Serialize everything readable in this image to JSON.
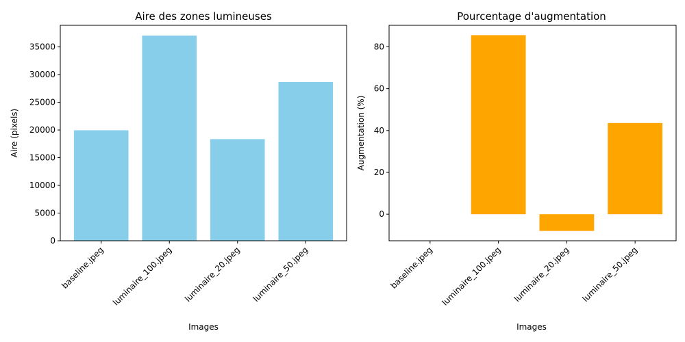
{
  "chart_data": [
    {
      "type": "bar",
      "title": "Aire des zones lumineuses",
      "xlabel": "Images",
      "ylabel": "Aire (pixels)",
      "categories": [
        "baseline.jpeg",
        "luminaire_100.jpeg",
        "luminaire_20.jpeg",
        "luminaire_50.jpeg"
      ],
      "values": [
        19950,
        37050,
        18350,
        28650
      ],
      "ylim": [
        0,
        38900
      ],
      "yticks": [
        0,
        5000,
        10000,
        15000,
        20000,
        25000,
        30000,
        35000
      ],
      "color": "#87ceeb",
      "grid": false
    },
    {
      "type": "bar",
      "title": "Pourcentage d'augmentation",
      "xlabel": "Images",
      "ylabel": "Augmentation (%)",
      "categories": [
        "baseline.jpeg",
        "luminaire_100.jpeg",
        "luminaire_20.jpeg",
        "luminaire_50.jpeg"
      ],
      "values": [
        0,
        85.6,
        -8,
        43.6
      ],
      "ylim": [
        -12.7,
        90.3
      ],
      "yticks": [
        0,
        20,
        40,
        60,
        80
      ],
      "color": "#ffa500",
      "grid": false
    }
  ]
}
